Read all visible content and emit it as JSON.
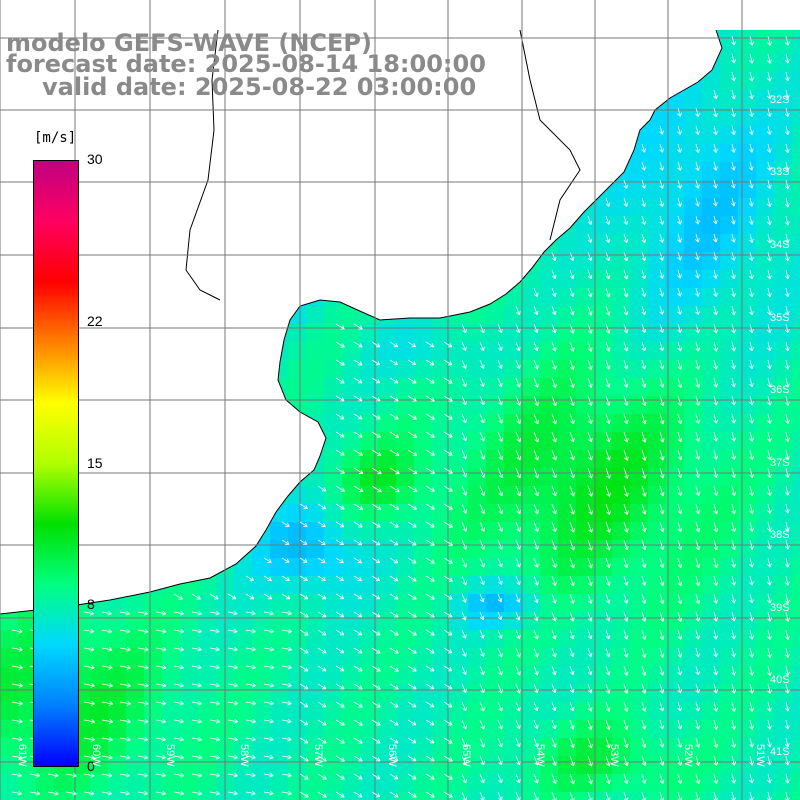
{
  "title": {
    "line1": "modelo GEFS-WAVE (NCEP)",
    "line2": "forecast date: 2025-08-14 18:00:00",
    "line3": "valid date: 2025-08-22 03:00:00"
  },
  "colorbar": {
    "unit": "[m/s]",
    "ticks": [
      "30",
      "22",
      "15",
      "8",
      "0"
    ],
    "tick_values": [
      30,
      22,
      15,
      8,
      0
    ],
    "min": 0,
    "max": 30,
    "colors": [
      "#0000ff",
      "#0080ff",
      "#00d8ff",
      "#00ff80",
      "#00e000",
      "#b0ff00",
      "#ffff00",
      "#ff8000",
      "#ff0000",
      "#ff0060",
      "#c00080"
    ]
  },
  "map": {
    "lat_labels": [
      "32S",
      "33S",
      "34S",
      "35S",
      "36S",
      "37S",
      "38S",
      "39S",
      "40S",
      "41S"
    ],
    "lon_labels": [
      "61W",
      "60W",
      "59W",
      "58W",
      "57W",
      "56W",
      "55W",
      "54W",
      "53W",
      "52W",
      "51W"
    ],
    "land_color": "#ffffff",
    "grid_color": "#777777",
    "coast_color": "#000000",
    "arrow_color": "#ffffff"
  }
}
